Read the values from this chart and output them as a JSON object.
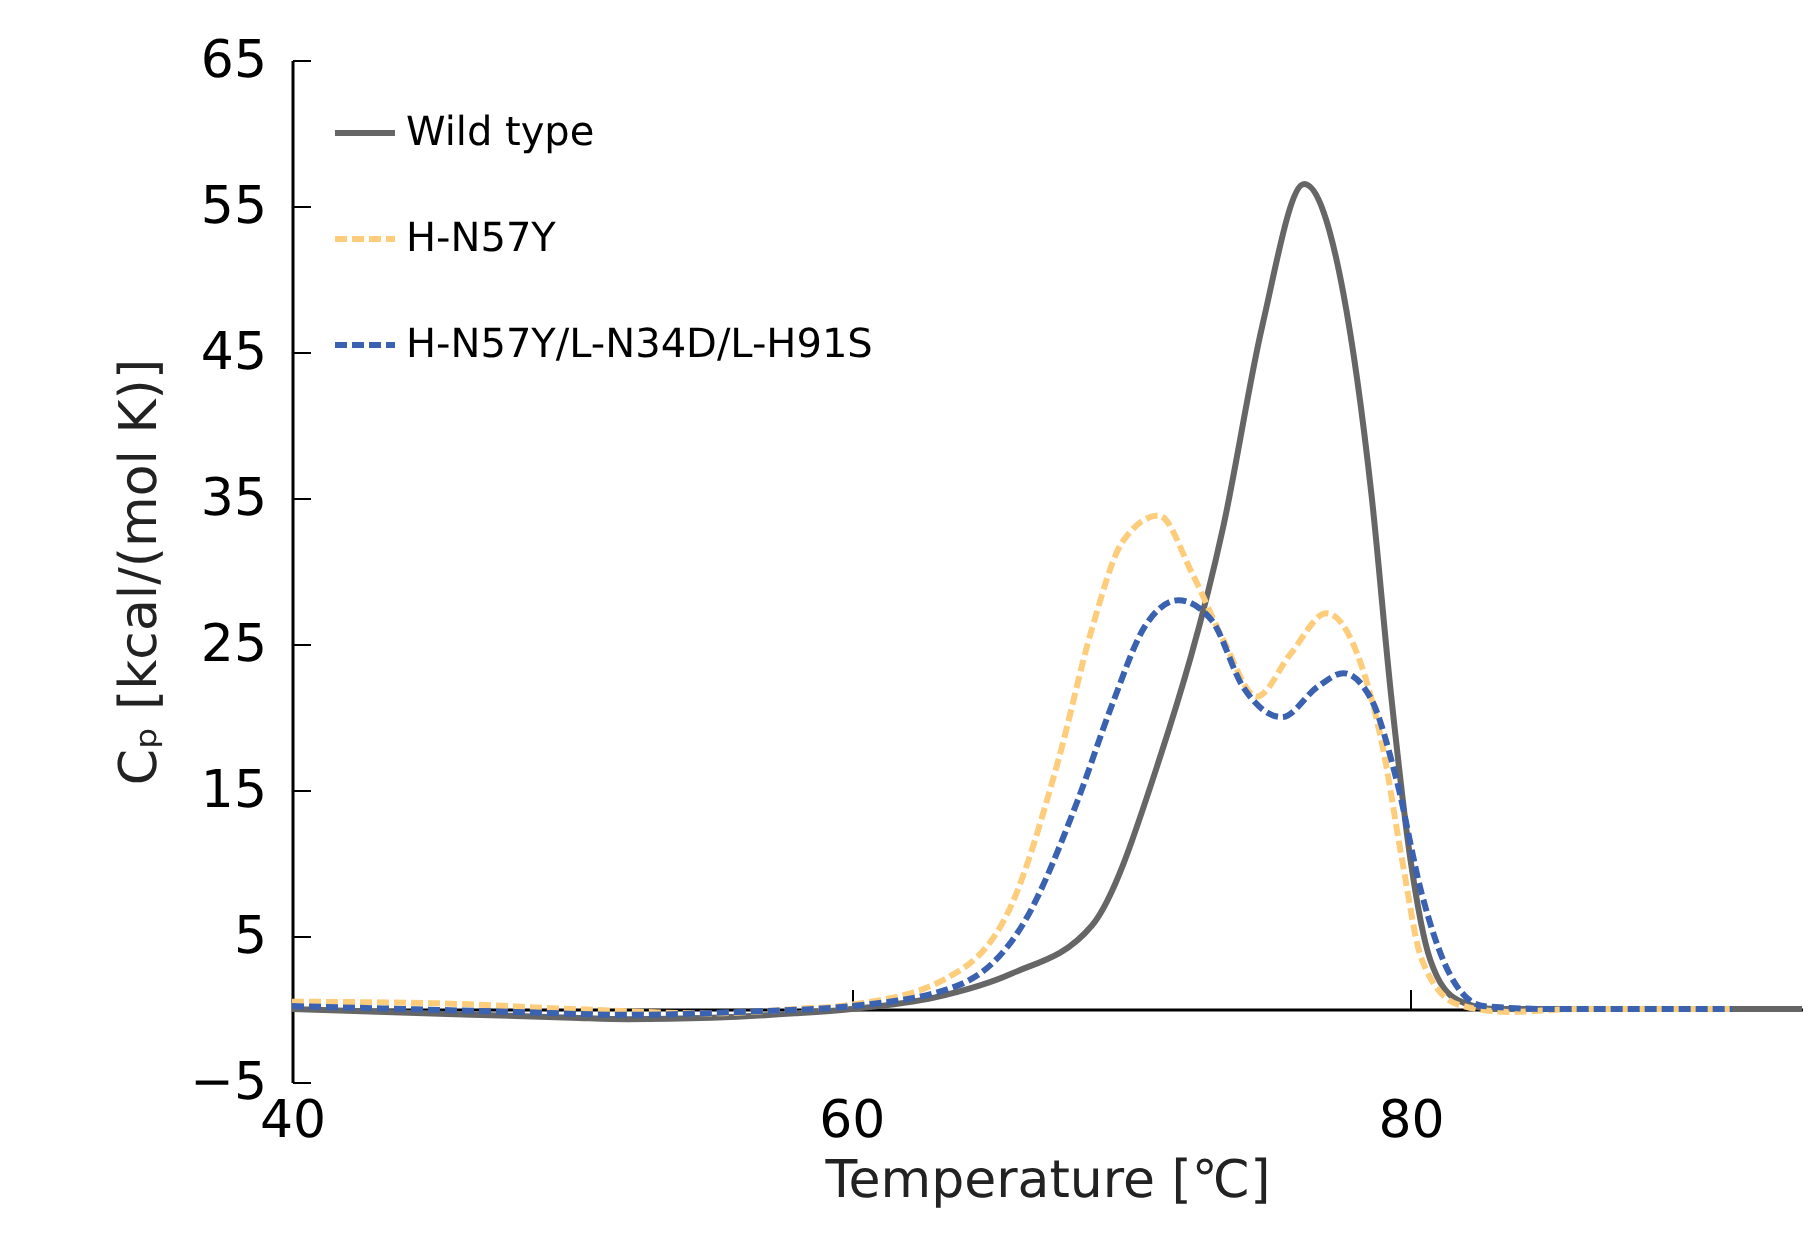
{
  "chart_data": {
    "type": "line",
    "xlabel": "Temperature [℃]",
    "ylabel": "Cₚ [kcal/(mol K)]",
    "xlim": [
      40,
      94
    ],
    "xticks": [
      40,
      60,
      80
    ],
    "ylim": [
      -5,
      65
    ],
    "yticks": [
      -5,
      5,
      15,
      25,
      35,
      45,
      55,
      65
    ],
    "legend": "top left",
    "series": [
      {
        "name": "Wild type",
        "color": "#666666",
        "line_style": "solid",
        "x": [
          40,
          45,
          50,
          52,
          55,
          58,
          60,
          63,
          65.7,
          68.6,
          71.0,
          73.3,
          74.7,
          76.2,
          77.6,
          78.6,
          79.3,
          80.0,
          80.7,
          81.7,
          83,
          86,
          90,
          94
        ],
        "values": [
          0,
          -0.3,
          -0.6,
          -0.7,
          -0.6,
          -0.3,
          0,
          0.8,
          2.4,
          5.7,
          17,
          33,
          46.8,
          56.5,
          49,
          35.3,
          21.6,
          10.2,
          3.4,
          0.6,
          0,
          0,
          0,
          0
        ]
      },
      {
        "name": "H-N57Y",
        "color": "#fdcd7c",
        "line_style": "dashed",
        "x": [
          40,
          45,
          50,
          55,
          58,
          60,
          63.3,
          65.7,
          67.4,
          68.6,
          69.7,
          71.0,
          72.2,
          73.3,
          74.5,
          75.7,
          77.0,
          78.1,
          79.0,
          79.7,
          80.4,
          81.7,
          83.5,
          86,
          91.5
        ],
        "values": [
          0.5,
          0.4,
          0,
          -0.3,
          0,
          0.3,
          2,
          7,
          17,
          26,
          32,
          33.8,
          29.8,
          25.3,
          21.4,
          24.3,
          27.1,
          24.3,
          18,
          10.2,
          3.4,
          0.3,
          -0.2,
          0,
          0
        ]
      },
      {
        "name": "H-N57Y/L-N34D/L-H91S",
        "color": "#3a62b0",
        "line_style": "dashed",
        "x": [
          40,
          44,
          48,
          52,
          56,
          60,
          63.8,
          66.2,
          68.1,
          69.3,
          70.5,
          71.7,
          72.9,
          74.0,
          75.4,
          76.7,
          77.6,
          78.6,
          79.5,
          80.4,
          81.4,
          82.6,
          85,
          91.5
        ],
        "values": [
          0.2,
          0,
          -0.2,
          -0.4,
          -0.2,
          0.2,
          1.6,
          6,
          14.3,
          20.7,
          26.2,
          28,
          26.6,
          22.1,
          20,
          22.1,
          23,
          21.2,
          15.7,
          7.9,
          2.4,
          0.2,
          0,
          0
        ]
      }
    ]
  }
}
